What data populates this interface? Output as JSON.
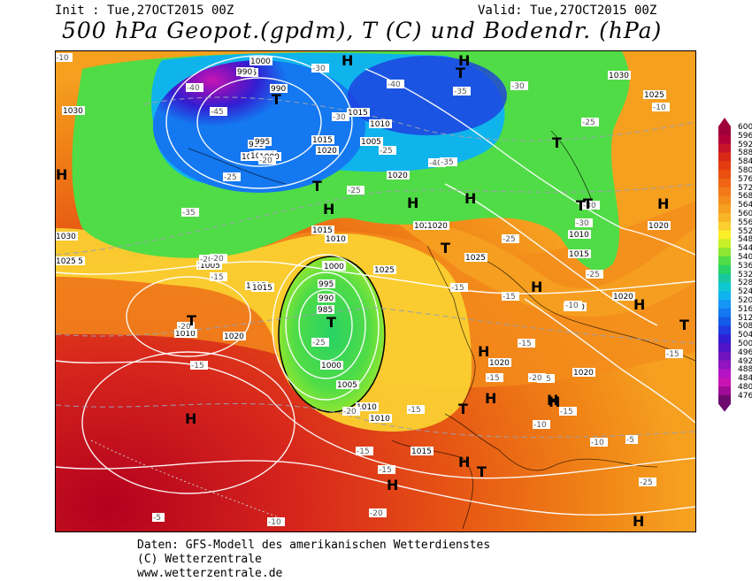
{
  "header": {
    "init": "Init : Tue,27OCT2015 00Z",
    "valid": "Valid: Tue,27OCT2015 00Z",
    "title": "500 hPa Geopot.(gpdm), T (C) und Bodendr. (hPa)"
  },
  "legend": {
    "values": [
      "600",
      "596",
      "592",
      "588",
      "584",
      "580",
      "576",
      "572",
      "568",
      "564",
      "560",
      "556",
      "552",
      "548",
      "544",
      "540",
      "536",
      "532",
      "528",
      "524",
      "520",
      "516",
      "512",
      "508",
      "504",
      "500",
      "496",
      "492",
      "488",
      "484",
      "480",
      "476"
    ],
    "colors": [
      "#a0003a",
      "#b4003a",
      "#c81428",
      "#d82818",
      "#e43c10",
      "#ec5010",
      "#f06414",
      "#f27818",
      "#f48c1c",
      "#f6a020",
      "#f8b424",
      "#fad030",
      "#fcee28",
      "#c8f028",
      "#8ce632",
      "#50dc46",
      "#28d264",
      "#18c8a0",
      "#10c8d2",
      "#10b4ec",
      "#1496f4",
      "#1478f0",
      "#145ae8",
      "#1e3ce0",
      "#321ed2",
      "#5014c8",
      "#7014c0",
      "#9014c0",
      "#b414c4",
      "#c814b4",
      "#a00c96",
      "#6e0a6e"
    ]
  },
  "map": {
    "pressure_labels": [
      "1000",
      "995",
      "990",
      "1030",
      "1000",
      "995",
      "1015",
      "1010",
      "1015",
      "1020",
      "1005",
      "1000",
      "990",
      "995",
      "1000",
      "1015",
      "1020",
      "1000",
      "1005",
      "1010",
      "1020",
      "1030",
      "1025",
      "1025",
      "1005",
      "1015",
      "1010",
      "1005",
      "1000",
      "995",
      "990",
      "985",
      "1000",
      "1005",
      "1010",
      "1010",
      "1015",
      "1020",
      "1025",
      "1020",
      "1010",
      "1015",
      "1025",
      "1020",
      "1020",
      "1020",
      "1020",
      "1030",
      "1025",
      "1015",
      "1020"
    ],
    "temp_labels": [
      "-40",
      "-45",
      "-30",
      "-25",
      "-35",
      "-30",
      "-40",
      "-35",
      "-40",
      "-30",
      "-20",
      "-25",
      "-25",
      "-25",
      "-20",
      "-30",
      "-30",
      "-35",
      "-25",
      "-20",
      "-15",
      "-20",
      "-15",
      "-15",
      "-10",
      "-25",
      "-20",
      "-15",
      "-15",
      "-15",
      "-10",
      "-15",
      "-15",
      "-20",
      "-10",
      "-25",
      "-10",
      "-15",
      "-10",
      "-5",
      "-15",
      "-25",
      "-20",
      "-15",
      "-5",
      "-10",
      "-15"
    ],
    "symbols": [
      "H",
      "T",
      "H",
      "T",
      "H",
      "H",
      "H",
      "H",
      "T",
      "T",
      "T",
      "T",
      "H",
      "T",
      "T",
      "H",
      "T",
      "H",
      "H",
      "H",
      "H",
      "T",
      "H",
      "T",
      "H",
      "H",
      "T",
      "H",
      "H"
    ]
  },
  "footer": {
    "line1": "Daten: GFS-Modell des amerikanischen Wetterdienstes",
    "line2": "(C) Wetterzentrale",
    "line3": "www.wetterzentrale.de"
  }
}
